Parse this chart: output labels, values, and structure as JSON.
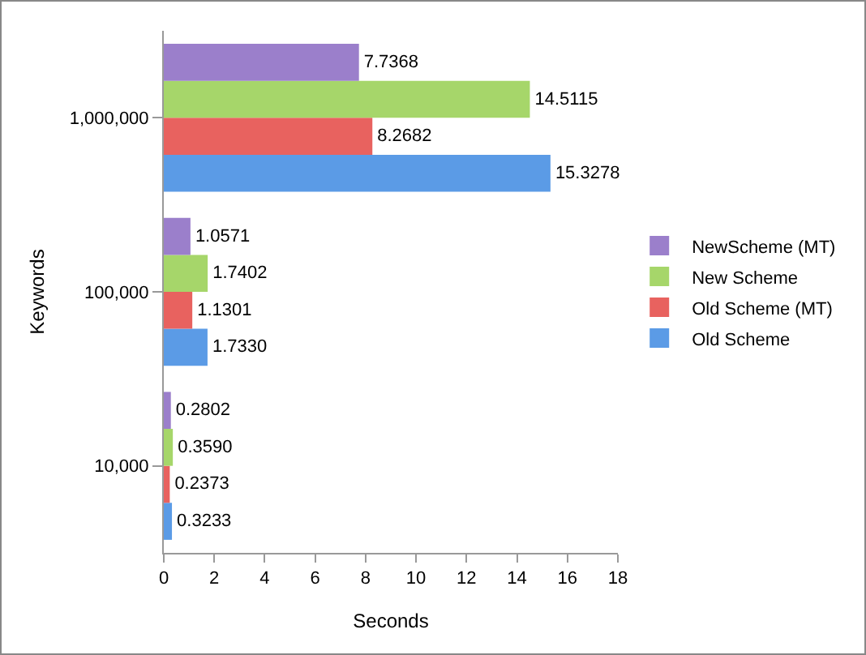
{
  "chart_data": {
    "type": "bar",
    "orientation": "horizontal",
    "xlabel": "Seconds",
    "ylabel": "Keywords",
    "categories": [
      "1,000,000",
      "100,000",
      "10,000"
    ],
    "series": [
      {
        "name": "Old Scheme",
        "color": "#5b9be6",
        "values": [
          15.3278,
          1.733,
          0.3233
        ],
        "value_labels": [
          "15.3278",
          "1.7330",
          "0.3233"
        ]
      },
      {
        "name": "Old Scheme (MT)",
        "color": "#e8625f",
        "values": [
          8.2682,
          1.1301,
          0.2373
        ],
        "value_labels": [
          "8.2682",
          "1.1301",
          "0.2373"
        ]
      },
      {
        "name": "New Scheme",
        "color": "#a6d66a",
        "values": [
          14.5115,
          1.7402,
          0.359
        ],
        "value_labels": [
          "14.5115",
          "1.7402",
          "0.3590"
        ]
      },
      {
        "name": "NewScheme (MT)",
        "color": "#9b7fcb",
        "values": [
          7.7368,
          1.0571,
          0.2802
        ],
        "value_labels": [
          "7.7368",
          "1.0571",
          "0.2802"
        ]
      }
    ],
    "xlim": [
      0,
      18
    ],
    "xticks": [
      0,
      2,
      4,
      6,
      8,
      10,
      12,
      14,
      16,
      18
    ],
    "grid": false,
    "legend": "right"
  }
}
